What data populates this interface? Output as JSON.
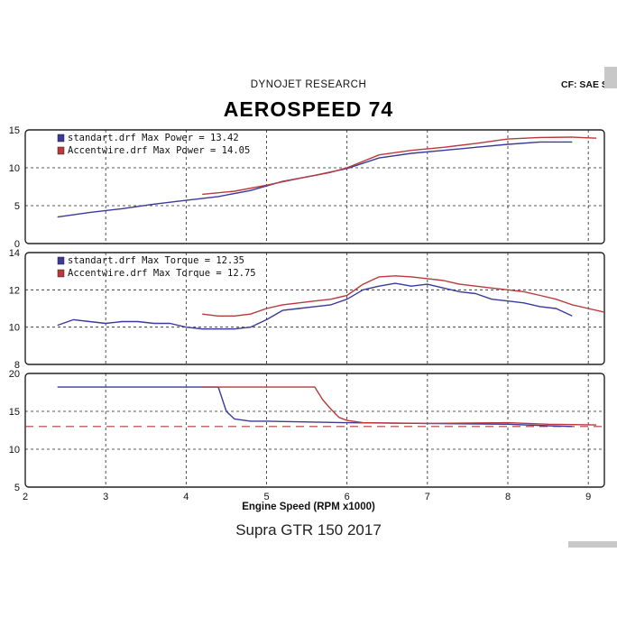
{
  "header": {
    "company": "DYNOJET RESEARCH",
    "title": "AEROSPEED 74",
    "cf_label": "CF: SAE  S"
  },
  "caption": "Supra GTR 150 2017",
  "colors": {
    "standard": "#3a3a9a",
    "accent": "#b83a3a",
    "grid": "#222222",
    "dashed": "#b83a3a"
  },
  "chart_data": [
    {
      "type": "line",
      "panel": "power",
      "ylim": [
        0,
        15
      ],
      "yticks": [
        "0",
        "5",
        "10",
        "15"
      ],
      "legend": [
        {
          "label": "standart.drf Max Power = 13.42"
        },
        {
          "label": "Accentwire.drf Max Power = 14.05"
        }
      ],
      "series": [
        {
          "x": [
            2.4,
            2.8,
            3.2,
            3.6,
            4.0,
            4.4,
            4.8,
            5.2,
            5.6,
            6.0,
            6.4,
            6.8,
            7.2,
            7.6,
            8.0,
            8.4,
            8.8
          ],
          "values": [
            3.5,
            4.1,
            4.6,
            5.2,
            5.7,
            6.2,
            7.0,
            8.2,
            9.0,
            9.9,
            11.3,
            11.9,
            12.3,
            12.7,
            13.1,
            13.4,
            13.4
          ]
        },
        {
          "x": [
            4.2,
            4.6,
            5.0,
            5.4,
            5.8,
            6.0,
            6.4,
            6.8,
            7.2,
            7.6,
            8.0,
            8.4,
            8.8,
            9.1
          ],
          "values": [
            6.5,
            6.9,
            7.7,
            8.6,
            9.4,
            10.0,
            11.7,
            12.3,
            12.7,
            13.2,
            13.8,
            14.0,
            14.05,
            13.9
          ]
        }
      ]
    },
    {
      "type": "line",
      "panel": "torque",
      "ylim": [
        8,
        14
      ],
      "yticks": [
        "8",
        "10",
        "12",
        "14"
      ],
      "legend": [
        {
          "label": "standart.drf Max Torque = 12.35"
        },
        {
          "label": "Accentwire.drf Max Torque = 12.75"
        }
      ],
      "series": [
        {
          "x": [
            2.4,
            2.6,
            2.8,
            3.0,
            3.2,
            3.4,
            3.6,
            3.8,
            4.0,
            4.2,
            4.4,
            4.6,
            4.8,
            5.0,
            5.2,
            5.4,
            5.6,
            5.8,
            6.0,
            6.2,
            6.4,
            6.6,
            6.8,
            7.0,
            7.2,
            7.4,
            7.6,
            7.8,
            8.0,
            8.2,
            8.4,
            8.6,
            8.8
          ],
          "values": [
            10.1,
            10.4,
            10.3,
            10.2,
            10.3,
            10.3,
            10.2,
            10.2,
            10.0,
            9.9,
            9.9,
            9.9,
            10.0,
            10.4,
            10.9,
            11.0,
            11.1,
            11.2,
            11.5,
            12.0,
            12.2,
            12.35,
            12.2,
            12.3,
            12.1,
            11.9,
            11.8,
            11.5,
            11.4,
            11.3,
            11.1,
            11.0,
            10.6
          ]
        },
        {
          "x": [
            4.2,
            4.4,
            4.6,
            4.8,
            5.0,
            5.2,
            5.4,
            5.6,
            5.8,
            6.0,
            6.2,
            6.4,
            6.6,
            6.8,
            7.0,
            7.2,
            7.4,
            7.6,
            7.8,
            8.0,
            8.2,
            8.4,
            8.6,
            8.8,
            9.0,
            9.2
          ],
          "values": [
            10.7,
            10.6,
            10.6,
            10.7,
            11.0,
            11.2,
            11.3,
            11.4,
            11.5,
            11.7,
            12.3,
            12.7,
            12.75,
            12.7,
            12.6,
            12.5,
            12.3,
            12.2,
            12.1,
            12.0,
            11.9,
            11.7,
            11.5,
            11.2,
            11.0,
            10.8
          ]
        }
      ]
    },
    {
      "type": "line",
      "panel": "afr",
      "ylim": [
        5,
        20
      ],
      "yticks": [
        "5",
        "10",
        "15",
        "20"
      ],
      "xlabel": "Engine Speed (RPM x1000)",
      "xlim": [
        2,
        9.2
      ],
      "xticks": [
        "2",
        "3",
        "4",
        "5",
        "6",
        "7",
        "8",
        "9"
      ],
      "reference_line": 13.0,
      "series": [
        {
          "x": [
            2.4,
            4.4,
            4.5,
            4.6,
            4.8,
            5.0,
            6.0,
            7.0,
            8.0,
            8.5,
            8.8
          ],
          "values": [
            18.2,
            18.2,
            15.0,
            14.0,
            13.7,
            13.7,
            13.5,
            13.4,
            13.3,
            13.1,
            13.0
          ]
        },
        {
          "x": [
            4.2,
            5.6,
            5.7,
            5.8,
            5.9,
            6.0,
            6.2,
            7.0,
            8.0,
            8.5,
            9.1
          ],
          "values": [
            18.2,
            18.2,
            16.5,
            15.3,
            14.2,
            13.8,
            13.5,
            13.4,
            13.5,
            13.3,
            13.2
          ]
        }
      ]
    }
  ]
}
